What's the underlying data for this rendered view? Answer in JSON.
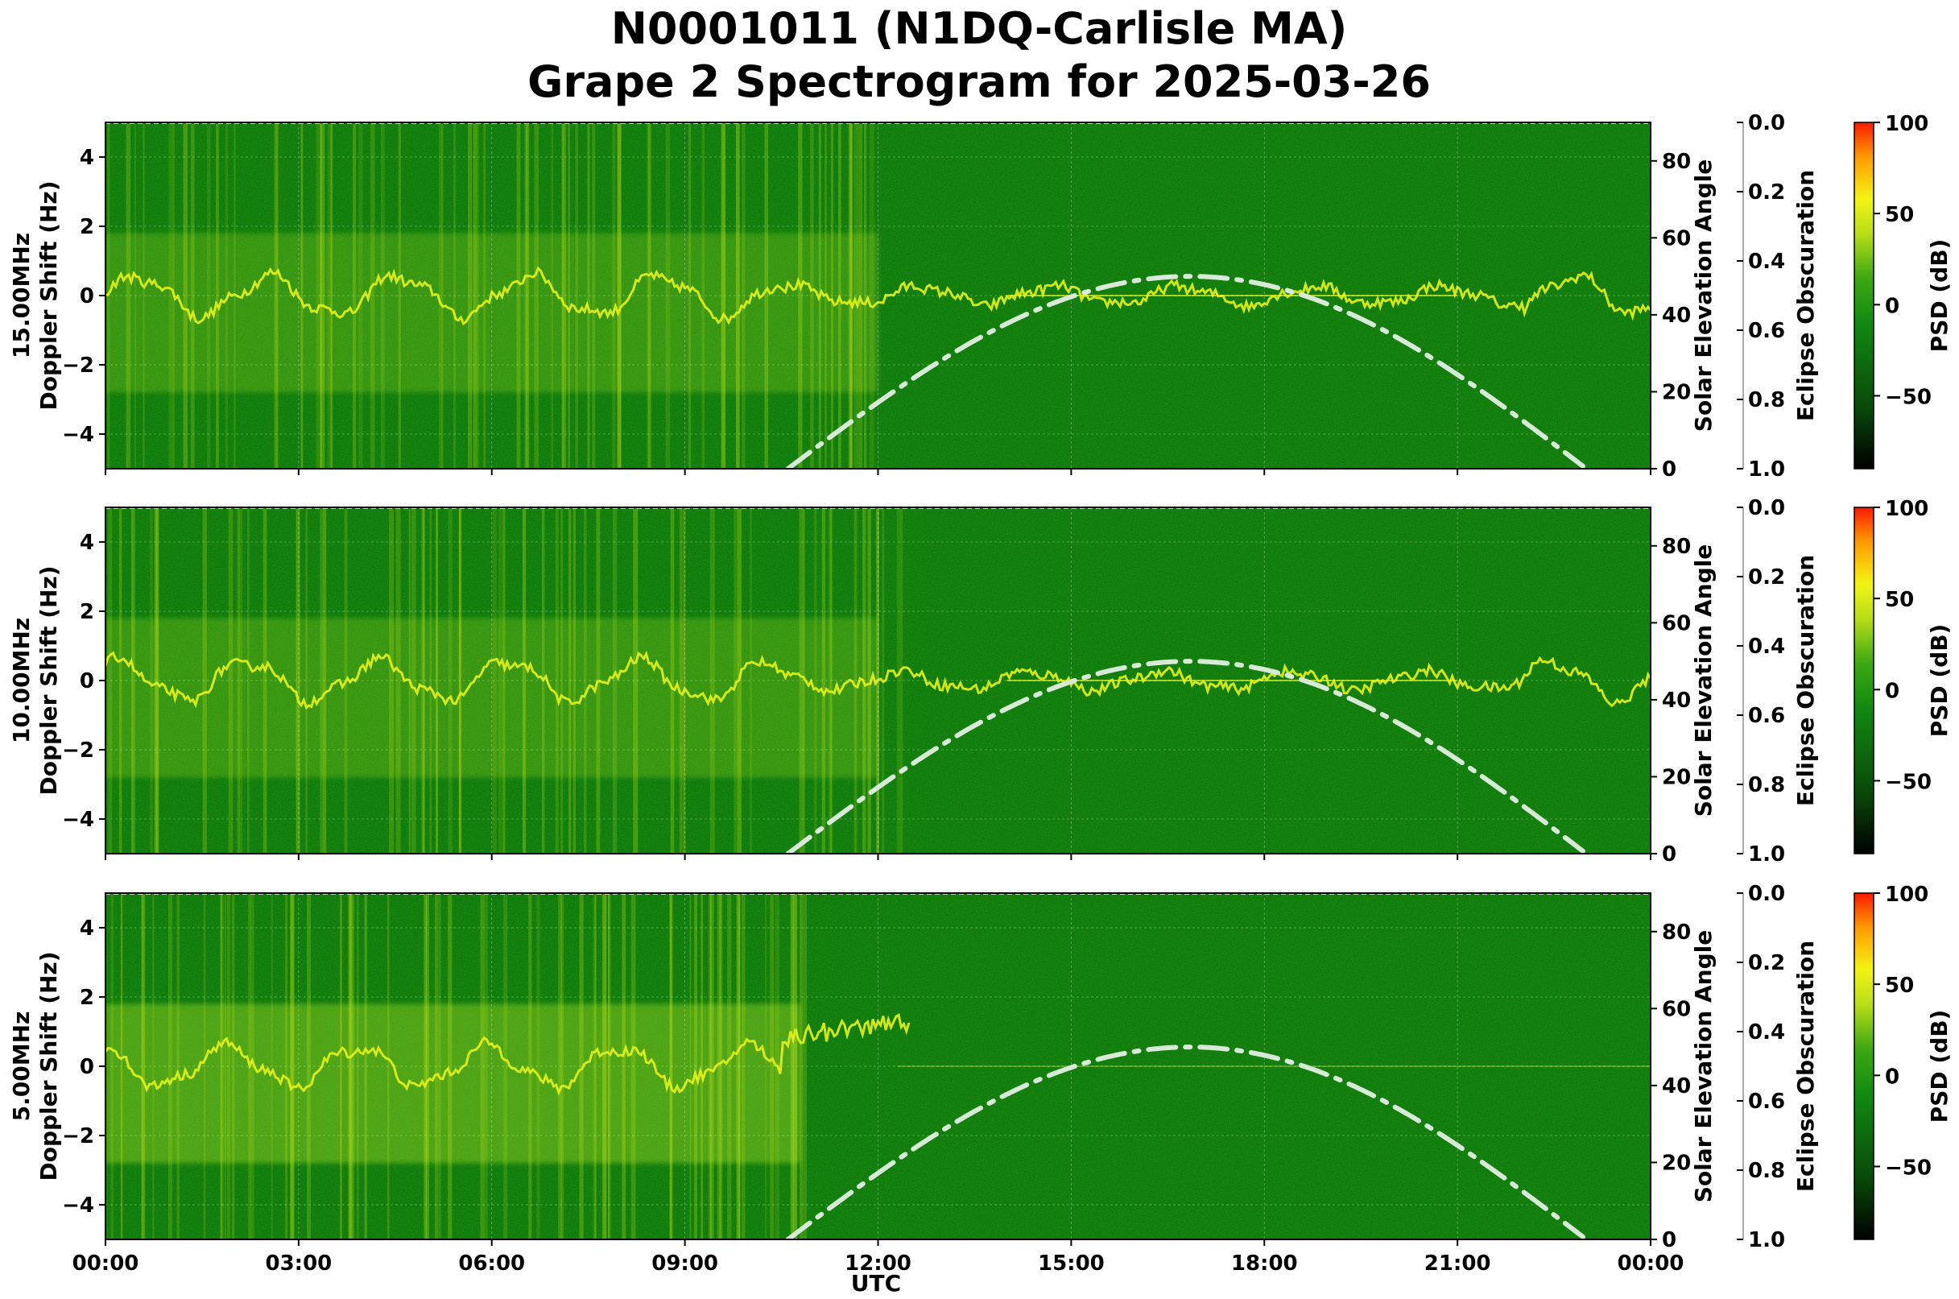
{
  "title_line1": "N0001011 (N1DQ-Carlisle MA)",
  "title_line2": "Grape 2 Spectrogram for 2025-03-26",
  "xlabel": "UTC",
  "colors": {
    "background_green": "#0b7a0b",
    "trace_yellow": "#e6f21a",
    "elevation_curve": "#d7ead7",
    "colormap": [
      "#000000",
      "#0b5a0b",
      "#128a12",
      "#7ecb14",
      "#f4f414",
      "#ff8c00",
      "#ff1a00"
    ]
  },
  "chart_data": [
    {
      "type": "heatmap",
      "panel": "15.00MHz",
      "ylabel": "15.00MHz\nDoppler Shift (Hz)",
      "ylabel_lines": [
        "15.00MHz",
        "Doppler Shift (Hz)"
      ],
      "ylim": [
        -5,
        5
      ],
      "yticks": [
        "4",
        "2",
        "0",
        "−2",
        "−4"
      ],
      "ytick_values": [
        4,
        2,
        0,
        -2,
        -4
      ],
      "xticks": [
        "00:00",
        "03:00",
        "06:00",
        "09:00",
        "12:00",
        "15:00",
        "18:00",
        "21:00",
        "00:00"
      ],
      "xlim_hours": [
        0,
        24
      ],
      "right_axis_label": "Solar Elevation Angle",
      "right_ticks": [
        "80",
        "60",
        "40",
        "20",
        "0"
      ],
      "right_tick_values": [
        80,
        60,
        40,
        20,
        0
      ],
      "right_ylim": [
        0,
        90
      ],
      "eclipse_label": "Eclipse Obscuration",
      "eclipse_ticks": [
        "0.0",
        "0.2",
        "0.4",
        "0.6",
        "0.8",
        "1.0"
      ],
      "cbar_label": "PSD (dB)",
      "cbar_ticks": [
        "100",
        "50",
        "0",
        "−50"
      ],
      "cbar_values": [
        100,
        50,
        0,
        -50
      ],
      "cbar_range": [
        -90,
        100
      ],
      "solar_elevation": {
        "sunrise_hour": 10.6,
        "peak_hour": 16.85,
        "sunset_hour": 23.0,
        "peak_deg": 50
      },
      "grid": true
    },
    {
      "type": "heatmap",
      "panel": "10.00MHz",
      "ylabel": "10.00MHz\nDoppler Shift (Hz)",
      "ylabel_lines": [
        "10.00MHz",
        "Doppler Shift (Hz)"
      ],
      "ylim": [
        -5,
        5
      ],
      "yticks": [
        "4",
        "2",
        "0",
        "−2",
        "−4"
      ],
      "ytick_values": [
        4,
        2,
        0,
        -2,
        -4
      ],
      "xticks": [
        "00:00",
        "03:00",
        "06:00",
        "09:00",
        "12:00",
        "15:00",
        "18:00",
        "21:00",
        "00:00"
      ],
      "xlim_hours": [
        0,
        24
      ],
      "right_axis_label": "Solar Elevation Angle",
      "right_ticks": [
        "80",
        "60",
        "40",
        "20",
        "0"
      ],
      "right_tick_values": [
        80,
        60,
        40,
        20,
        0
      ],
      "right_ylim": [
        0,
        90
      ],
      "eclipse_label": "Eclipse Obscuration",
      "eclipse_ticks": [
        "0.0",
        "0.2",
        "0.4",
        "0.6",
        "0.8",
        "1.0"
      ],
      "cbar_label": "PSD (dB)",
      "cbar_ticks": [
        "100",
        "50",
        "0",
        "−50"
      ],
      "cbar_values": [
        100,
        50,
        0,
        -50
      ],
      "cbar_range": [
        -90,
        100
      ],
      "solar_elevation": {
        "sunrise_hour": 10.6,
        "peak_hour": 16.85,
        "sunset_hour": 23.0,
        "peak_deg": 50
      },
      "grid": true
    },
    {
      "type": "heatmap",
      "panel": "5.00MHz",
      "ylabel": "5.00MHz\nDoppler Shift (Hz)",
      "ylabel_lines": [
        "5.00MHz",
        "Doppler Shift (Hz)"
      ],
      "ylim": [
        -5,
        5
      ],
      "yticks": [
        "4",
        "2",
        "0",
        "−2",
        "−4"
      ],
      "ytick_values": [
        4,
        2,
        0,
        -2,
        -4
      ],
      "xticks": [
        "00:00",
        "03:00",
        "06:00",
        "09:00",
        "12:00",
        "15:00",
        "18:00",
        "21:00",
        "00:00"
      ],
      "xlim_hours": [
        0,
        24
      ],
      "right_axis_label": "Solar Elevation Angle",
      "right_ticks": [
        "80",
        "60",
        "40",
        "20",
        "0"
      ],
      "right_tick_values": [
        80,
        60,
        40,
        20,
        0
      ],
      "right_ylim": [
        0,
        90
      ],
      "eclipse_label": "Eclipse Obscuration",
      "eclipse_ticks": [
        "0.0",
        "0.2",
        "0.4",
        "0.6",
        "0.8",
        "1.0"
      ],
      "cbar_label": "PSD (dB)",
      "cbar_ticks": [
        "100",
        "50",
        "0",
        "−50"
      ],
      "cbar_values": [
        100,
        50,
        0,
        -50
      ],
      "cbar_range": [
        -90,
        100
      ],
      "solar_elevation": {
        "sunrise_hour": 10.6,
        "peak_hour": 16.85,
        "sunset_hour": 23.0,
        "peak_deg": 50
      },
      "grid": true
    }
  ]
}
